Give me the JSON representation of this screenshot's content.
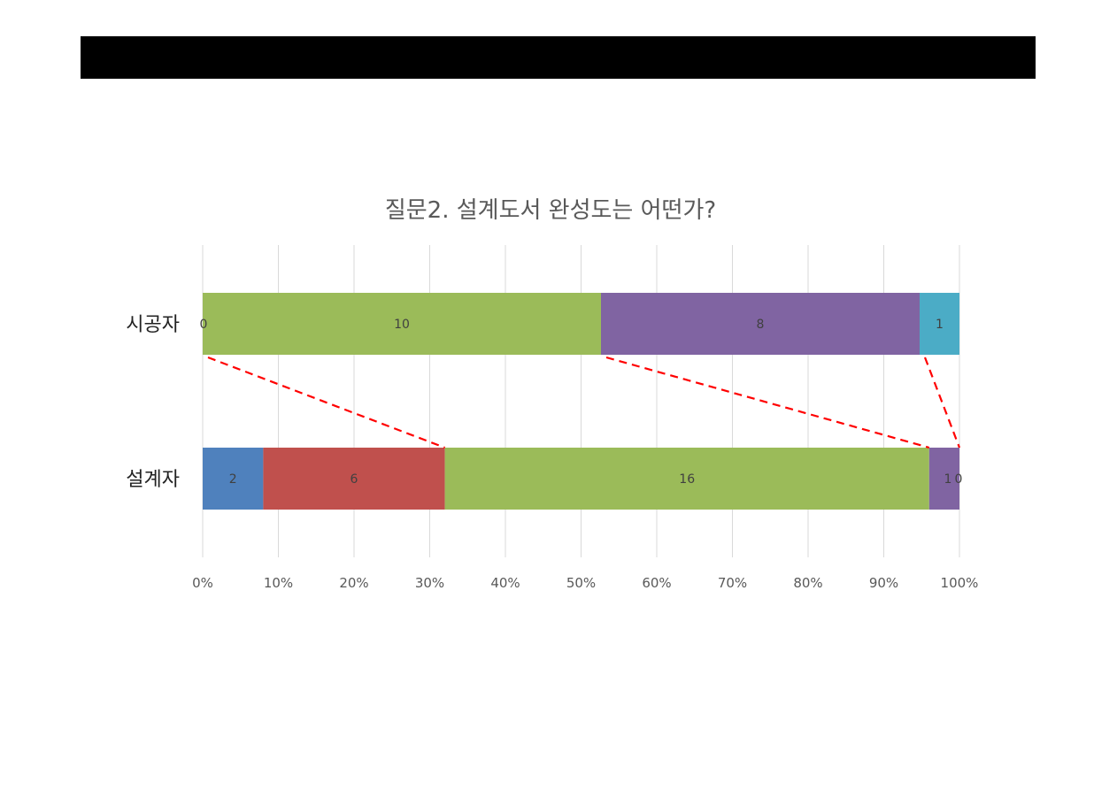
{
  "chart_data": {
    "type": "bar",
    "orientation": "horizontal",
    "stacked": "percent",
    "title": "질문2.  설계도서 완성도는 어떤가?",
    "categories": [
      "시공자",
      "설계자"
    ],
    "series": [
      {
        "color": "#4f81bd",
        "values": [
          0,
          2
        ]
      },
      {
        "color": "#c0504d",
        "values": [
          0,
          6
        ]
      },
      {
        "color": "#9bbb59",
        "values": [
          10,
          16
        ]
      },
      {
        "color": "#8064a2",
        "values": [
          8,
          1
        ]
      },
      {
        "color": "#4bacc6",
        "values": [
          1,
          0
        ]
      }
    ],
    "data_labels": [
      [
        "0",
        "10",
        "8",
        "1"
      ],
      [
        "2",
        "6",
        "16",
        "1",
        "0"
      ]
    ],
    "xlim": [
      0,
      100
    ],
    "x_ticks": [
      "0%",
      "10%",
      "20%",
      "30%",
      "40%",
      "50%",
      "60%",
      "70%",
      "80%",
      "90%",
      "100%"
    ],
    "grid": true,
    "legend": "none",
    "annotation": {
      "type": "dashed-connector-lines",
      "color": "#ff0000"
    }
  }
}
